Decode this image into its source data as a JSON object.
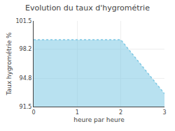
{
  "chart_data": {
    "type": "area",
    "title": "Evolution du taux d'hygrométrie",
    "xlabel": "heure par heure",
    "ylabel": "Taux hygrométrie %",
    "x": [
      0,
      2,
      3
    ],
    "values": [
      99.3,
      99.3,
      93.0
    ],
    "color": "#7ec8e3",
    "line_style": "dotted",
    "xlim": [
      0,
      3
    ],
    "ylim": [
      91.5,
      101.5
    ],
    "xticks": [
      0,
      1,
      2,
      3
    ],
    "yticks": [
      91.5,
      94.8,
      98.2,
      101.5
    ],
    "grid": true
  }
}
